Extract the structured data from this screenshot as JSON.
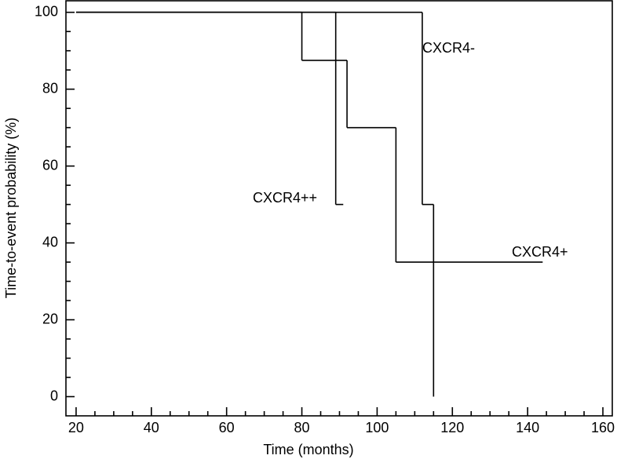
{
  "chart_data": {
    "type": "step",
    "x_label": "Time (months)",
    "y_label": "Time-to-event probability (%)",
    "xlim": [
      17.3,
      162.5
    ],
    "ylim": [
      -5,
      103
    ],
    "xticks": [
      20,
      40,
      60,
      80,
      100,
      120,
      140,
      160
    ],
    "yticks": [
      0,
      20,
      40,
      60,
      80,
      100
    ],
    "series": [
      {
        "name": "CXCR4-",
        "color": "#000000",
        "x": [
          20,
          112,
          115
        ],
        "values": [
          100,
          50,
          0
        ]
      },
      {
        "name": "CXCR4++",
        "color": "#000000",
        "x": [
          20,
          89,
          91
        ],
        "values": [
          100,
          50,
          50
        ]
      },
      {
        "name": "CXCR4+",
        "color": "#000000",
        "x": [
          20,
          80,
          92,
          105,
          144
        ],
        "values": [
          100,
          87.5,
          70,
          35,
          35
        ]
      }
    ]
  }
}
